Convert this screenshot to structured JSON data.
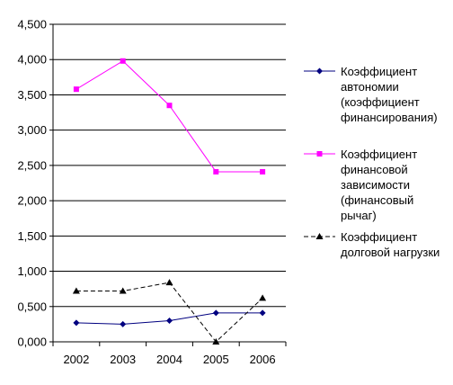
{
  "chart_data": {
    "type": "line",
    "title": "",
    "xlabel": "",
    "ylabel": "",
    "categories": [
      "2002",
      "2003",
      "2004",
      "2005",
      "2006"
    ],
    "ylim": [
      0,
      4.5
    ],
    "yticks": [
      0,
      0.5,
      1.0,
      1.5,
      2.0,
      2.5,
      3.0,
      3.5,
      4.0,
      4.5
    ],
    "ytick_labels": [
      "0,000",
      "0,500",
      "1,000",
      "1,500",
      "2,000",
      "2,500",
      "3,000",
      "3,500",
      "4,000",
      "4,500"
    ],
    "grid": true,
    "legend_position": "right",
    "series": [
      {
        "name": "Коэффициент автономии (коэффициент финансирования)",
        "legend_lines": [
          "Коэффициент",
          "автономии",
          "(коэффициент",
          "финансирования)"
        ],
        "values": [
          0.27,
          0.25,
          0.3,
          0.41,
          0.41
        ],
        "color": "#000080",
        "marker": "diamond",
        "dash": "solid"
      },
      {
        "name": "Коэффициент финансовой зависимости (финансовый рычаг)",
        "legend_lines": [
          "Коэффициент",
          "финансовой",
          "зависимости",
          "(финансовый",
          "рычаг)"
        ],
        "values": [
          3.58,
          3.98,
          3.35,
          2.41,
          2.41
        ],
        "color": "#ff00ff",
        "marker": "square",
        "dash": "solid"
      },
      {
        "name": "Коэффициент долговой нагрузки",
        "legend_lines": [
          "Коэффициент",
          "долговой нагрузки"
        ],
        "values": [
          0.72,
          0.72,
          0.84,
          0.0,
          0.62
        ],
        "color": "#000000",
        "marker": "triangle",
        "dash": "dashed"
      }
    ]
  }
}
